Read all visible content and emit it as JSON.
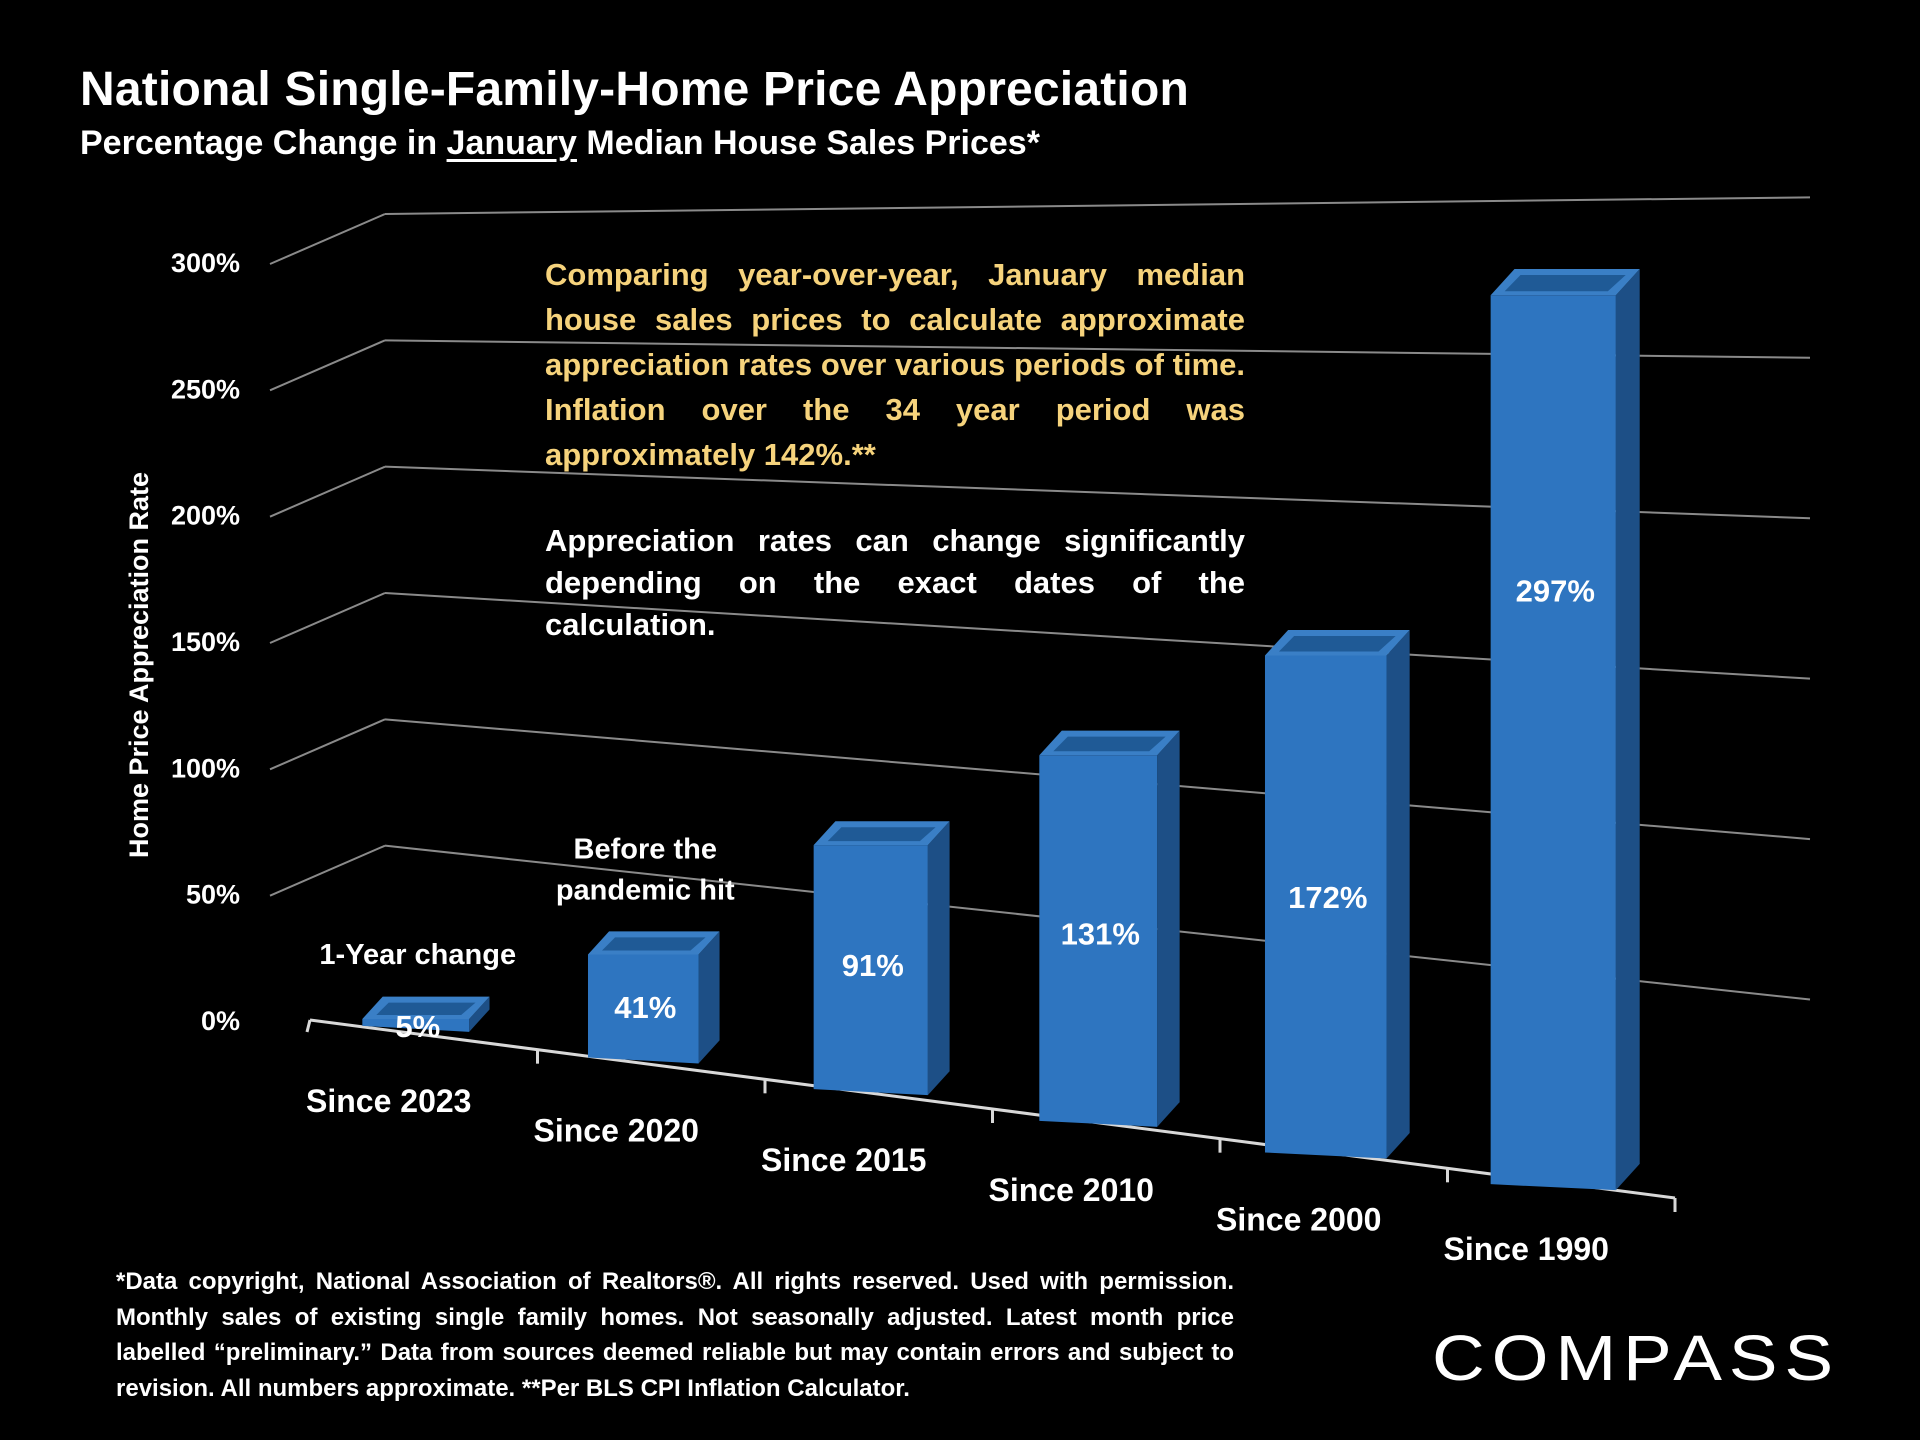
{
  "header": {
    "title": "National Single-Family-Home Price Appreciation",
    "subtitle_before": "Percentage Change in ",
    "subtitle_underlined": "January",
    "subtitle_after": " Median House Sales Prices*"
  },
  "notes": {
    "yellow": "Comparing year-over-year, January median house sales prices to calculate approximate appreciation rates over various periods of time. Inflation over the 34 year period was approximately 142%.**",
    "white": "Appreciation rates can change significantly depending on the exact dates of the calculation."
  },
  "footnote": "*Data copyright, National Association of Realtors®. All rights reserved. Used with permission. Monthly sales of existing single family homes. Not seasonally adjusted. Latest month price labelled “preliminary.” Data from sources deemed reliable but may contain errors and subject to revision. All numbers  approximate. **Per BLS CPI Inflation Calculator.",
  "logo": {
    "text": "COMPASS"
  },
  "colors": {
    "bar_front": "#2e75c0",
    "bar_side": "#1d4f86",
    "bar_top": "#3a7fc6",
    "bar_top_inner": "#1f5a96",
    "note_yellow": "#f6d37c",
    "grid": "#8a8a8a"
  },
  "chart_data": {
    "type": "bar",
    "title": "National Single-Family-Home Price Appreciation",
    "ylabel": "Home Price Appreciation Rate",
    "xlabel": "",
    "ylim": [
      0,
      300
    ],
    "yticks": [
      0,
      50,
      100,
      150,
      200,
      250,
      300
    ],
    "ytick_labels": [
      "0%",
      "50%",
      "100%",
      "150%",
      "200%",
      "250%",
      "300%"
    ],
    "categories": [
      "Since 2023",
      "Since 2020",
      "Since 2015",
      "Since 2010",
      "Since 2000",
      "Since 1990"
    ],
    "values": [
      5,
      41,
      91,
      131,
      172,
      297
    ],
    "data_labels": [
      "5%",
      "41%",
      "91%",
      "131%",
      "172%",
      "297%"
    ],
    "annotations": [
      {
        "category": "Since 2023",
        "lines": [
          "1-Year change"
        ]
      },
      {
        "category": "Since 2020",
        "lines": [
          "Before the",
          "pandemic hit"
        ]
      }
    ],
    "grid": true
  }
}
